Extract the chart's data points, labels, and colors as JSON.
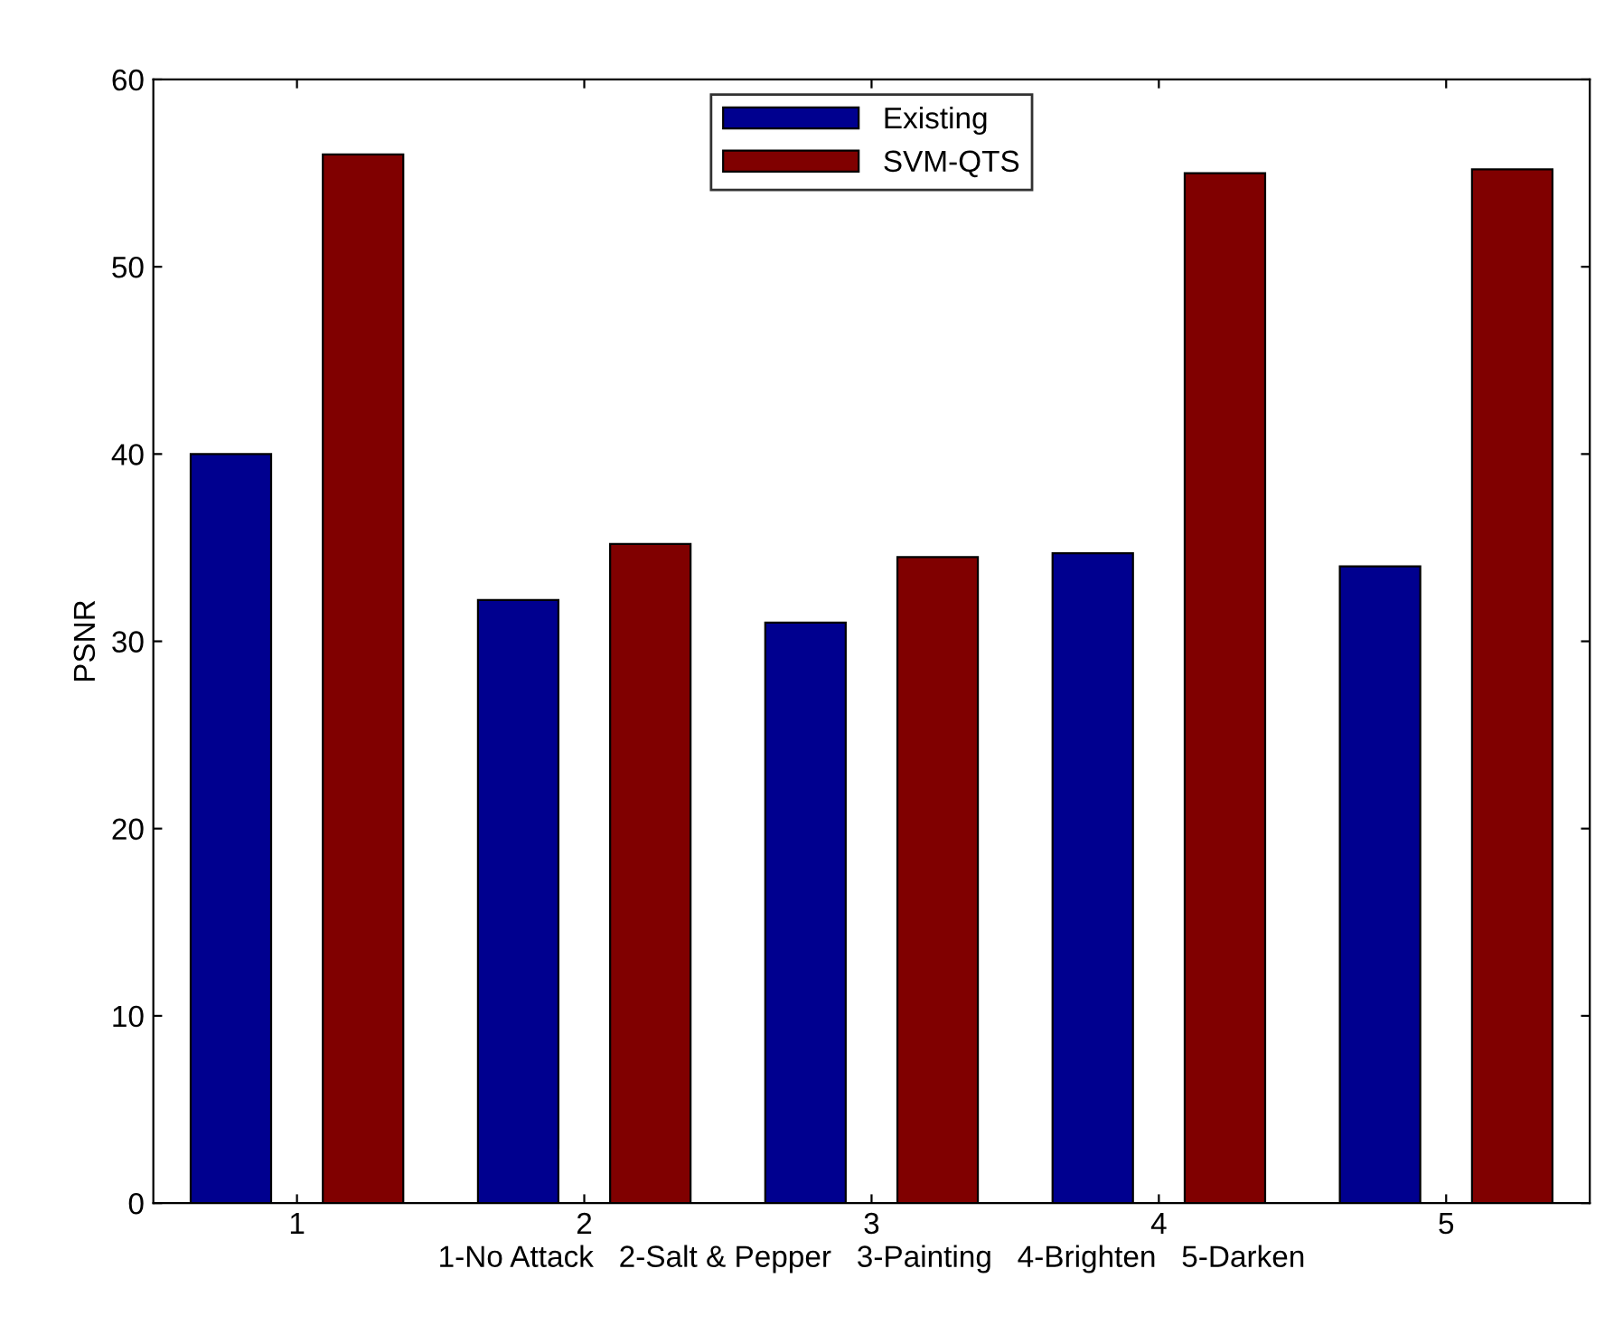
{
  "chart_data": {
    "type": "bar",
    "categories": [
      "1",
      "2",
      "3",
      "4",
      "5"
    ],
    "xlabel": "1-No Attack   2-Salt & Pepper   3-Painting   4-Brighten   5-Darken",
    "ylabel": "PSNR",
    "series": [
      {
        "name": "Existing",
        "color": "#00008f",
        "values": [
          40,
          32.2,
          31,
          34.7,
          34
        ]
      },
      {
        "name": "SVM-QTS",
        "color": "#800000",
        "values": [
          56,
          35.2,
          34.5,
          55,
          55.2
        ]
      }
    ],
    "ylim": [
      0,
      60
    ],
    "yticks": [
      0,
      10,
      20,
      30,
      40,
      50,
      60
    ],
    "grid": false,
    "legend": "top"
  }
}
